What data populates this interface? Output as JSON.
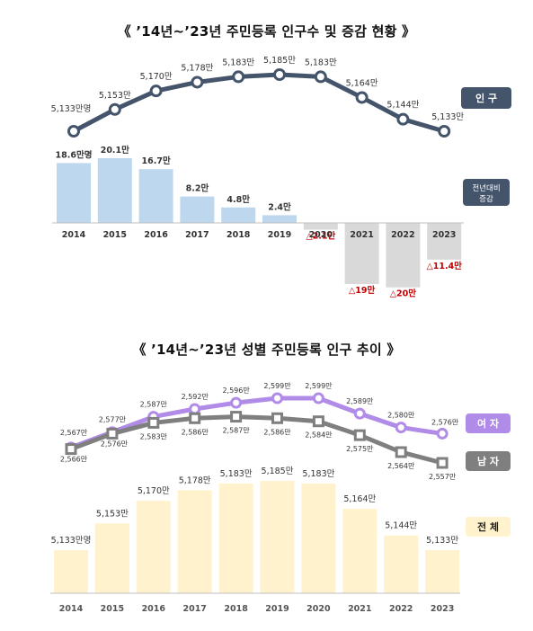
{
  "colors": {
    "pop_line": "#44546a",
    "pos_bar": "#bdd7ee",
    "neg_bar": "#d9d9d9",
    "neg_text": "#c00000",
    "female": "#b18be8",
    "male": "#7f7f7f",
    "total_bar": "#fff2cc",
    "legend_total_bg": "#fff2cc"
  },
  "chart_data": [
    {
      "type": "line+bar",
      "title": "《 ’14년~’23년 주민등록 인구수 및 증감 현황 》",
      "categories": [
        "2014",
        "2015",
        "2016",
        "2017",
        "2018",
        "2019",
        "2020",
        "2021",
        "2022",
        "2023"
      ],
      "series": [
        {
          "name": "인 구",
          "type": "line",
          "values": [
            5133,
            5153,
            5170,
            5178,
            5183,
            5185,
            5183,
            5164,
            5144,
            5133
          ],
          "labels": [
            "5,133만명",
            "5,153만",
            "5,170만",
            "5,178만",
            "5,183만",
            "5,185만",
            "5,183만",
            "5,164만",
            "5,144만",
            "5,133만"
          ]
        },
        {
          "name": "전년대비 증감",
          "type": "bar",
          "values": [
            18.6,
            20.1,
            16.7,
            8.2,
            4.8,
            2.4,
            -2.1,
            -19,
            -20,
            -11.4
          ],
          "labels": [
            "18.6만명",
            "20.1만",
            "16.7만",
            "8.2만",
            "4.8만",
            "2.4만",
            "△2.1만",
            "△19만",
            "△20만",
            "△11.4만"
          ]
        }
      ],
      "legend": [
        {
          "text": "인 구"
        },
        {
          "line1": "전년대비",
          "line2": "증감"
        }
      ]
    },
    {
      "type": "line+bar",
      "title": "《 ’14년~’23년 성별 주민등록 인구 추이 》",
      "categories": [
        "2014",
        "2015",
        "2016",
        "2017",
        "2018",
        "2019",
        "2020",
        "2021",
        "2022",
        "2023"
      ],
      "series": [
        {
          "name": "여 자",
          "type": "line",
          "values": [
            2567,
            2577,
            2587,
            2592,
            2596,
            2599,
            2599,
            2589,
            2580,
            2576
          ],
          "labels": [
            "2,567만",
            "2,577만",
            "2,587만",
            "2,592만",
            "2,596만",
            "2,599만",
            "2,599만",
            "2,589만",
            "2,580만",
            "2,576만"
          ]
        },
        {
          "name": "남 자",
          "type": "line",
          "values": [
            2566,
            2576,
            2583,
            2586,
            2587,
            2586,
            2584,
            2575,
            2564,
            2557
          ],
          "labels": [
            "2,566만",
            "2,576만",
            "2,583만",
            "2,586만",
            "2,587만",
            "2,586만",
            "2,584만",
            "2,575만",
            "2,564만",
            "2,557만"
          ]
        },
        {
          "name": "전 체",
          "type": "bar",
          "values": [
            5133,
            5153,
            5170,
            5178,
            5183,
            5185,
            5183,
            5164,
            5144,
            5133
          ],
          "labels": [
            "5,133만명",
            "5,153만",
            "5,170만",
            "5,178만",
            "5,183만",
            "5,185만",
            "5,183만",
            "5,164만",
            "5,144만",
            "5,133만"
          ]
        }
      ],
      "legend": [
        {
          "text": "여 자"
        },
        {
          "text": "남 자"
        },
        {
          "text": "전 체"
        }
      ]
    }
  ]
}
